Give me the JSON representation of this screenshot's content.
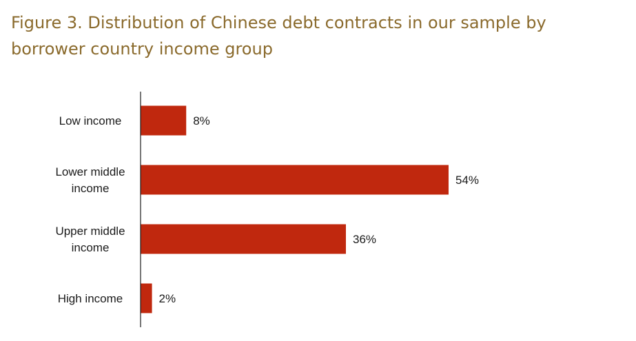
{
  "chart_data": {
    "type": "bar",
    "orientation": "horizontal",
    "title": "Figure 3. Distribution of Chinese debt contracts in our sample by borrower country income group",
    "categories": [
      "Low income",
      "Lower middle income",
      "Upper middle income",
      "High income"
    ],
    "category_lines": [
      [
        "Low income"
      ],
      [
        "Lower middle",
        "income"
      ],
      [
        "Upper middle",
        "income"
      ],
      [
        "High income"
      ]
    ],
    "values": [
      8,
      54,
      36,
      2
    ],
    "value_labels": [
      "8%",
      "54%",
      "36%",
      "2%"
    ],
    "xlim": [
      0,
      54
    ],
    "grid": false,
    "colors": {
      "bar": "#c0280e",
      "axis": "#1a1a1a",
      "title": "#8a6a2c"
    }
  }
}
